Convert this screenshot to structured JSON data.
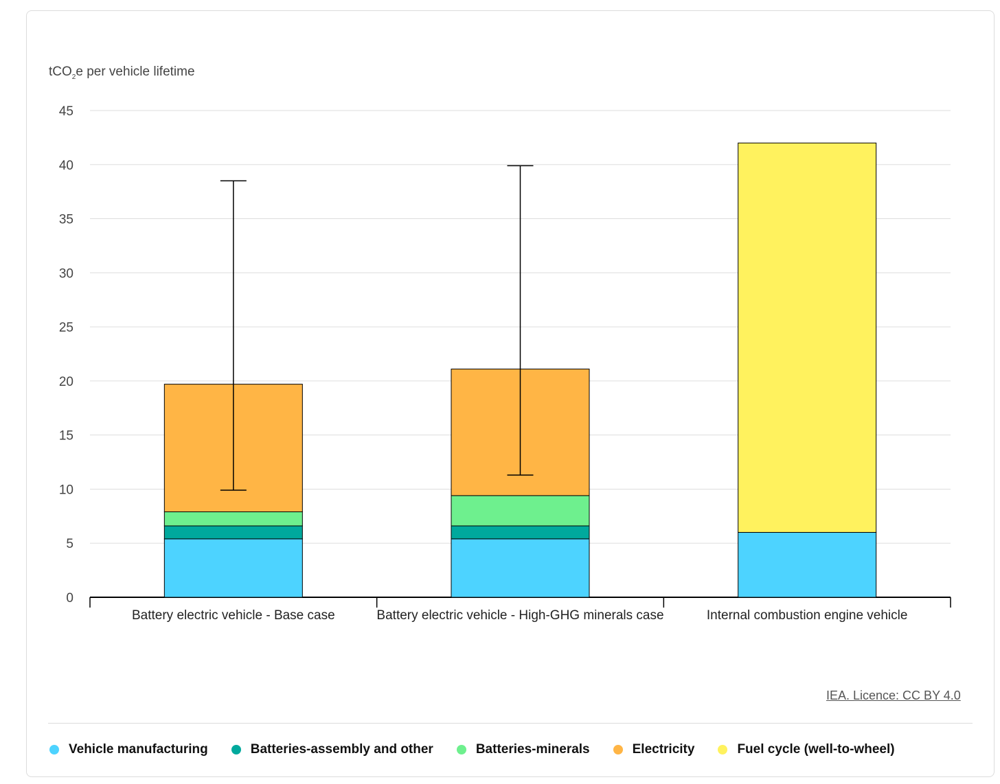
{
  "credit": "IEA. Licence: CC BY 4.0",
  "chart_data": {
    "type": "bar",
    "stacked": true,
    "ylabel_prefix": "tCO",
    "ylabel_sub": "2",
    "ylabel_suffix": "e per vehicle lifetime",
    "ylim": [
      0,
      45
    ],
    "yticks": [
      0,
      5,
      10,
      15,
      20,
      25,
      30,
      35,
      40,
      45
    ],
    "grid": true,
    "legend_position": "bottom",
    "categories": [
      "Battery electric vehicle - Base case",
      "Battery electric vehicle - High-GHG minerals case",
      "Internal combustion engine vehicle"
    ],
    "series": [
      {
        "name": "Vehicle manufacturing",
        "color": "#4dd3ff",
        "values": [
          5.4,
          5.4,
          6.0
        ]
      },
      {
        "name": "Batteries-assembly and other",
        "color": "#00a99d",
        "values": [
          1.2,
          1.2,
          0
        ]
      },
      {
        "name": "Batteries-minerals",
        "color": "#6ef08e",
        "values": [
          1.3,
          2.8,
          0
        ]
      },
      {
        "name": "Electricity",
        "color": "#ffb545",
        "values": [
          11.8,
          11.7,
          0
        ]
      },
      {
        "name": "Fuel cycle (well-to-wheel)",
        "color": "#fff25e",
        "values": [
          0,
          0,
          36.0
        ]
      }
    ],
    "error_bars": [
      {
        "low": 9.9,
        "high": 38.5
      },
      {
        "low": 11.3,
        "high": 39.9
      },
      null
    ]
  }
}
